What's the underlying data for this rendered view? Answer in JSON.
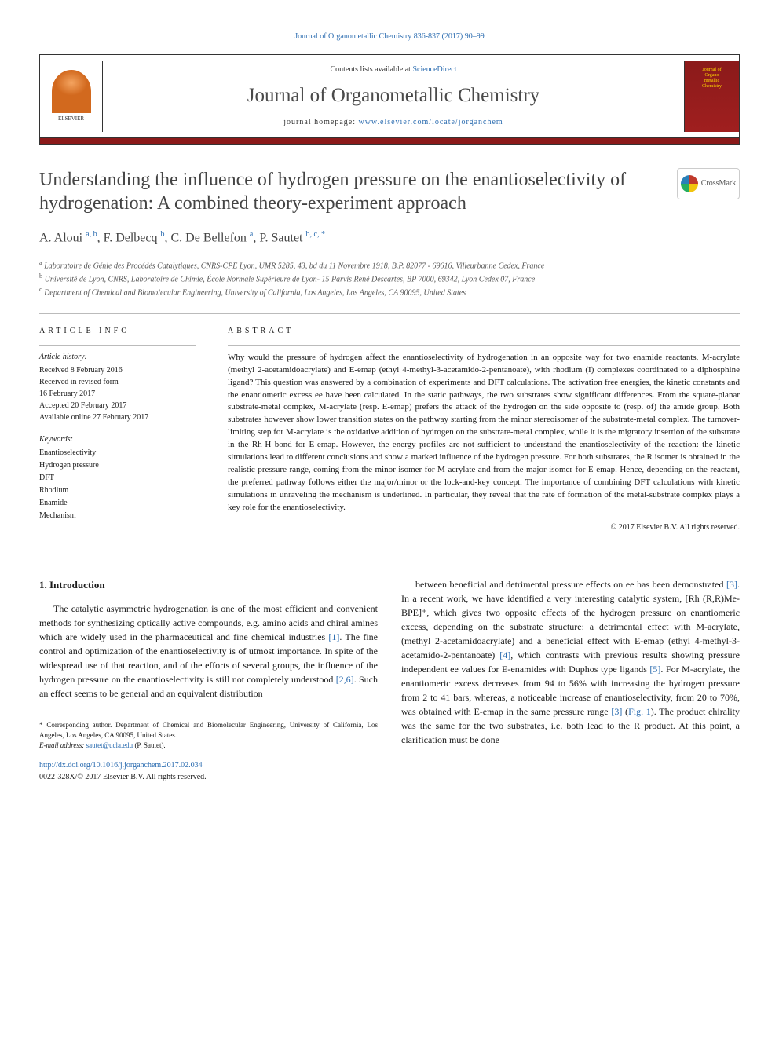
{
  "top_citation": "Journal of Organometallic Chemistry 836-837 (2017) 90–99",
  "header": {
    "contents_prefix": "Contents lists available at ",
    "contents_link": "ScienceDirect",
    "journal_name": "Journal of Organometallic Chemistry",
    "homepage_prefix": "journal homepage: ",
    "homepage_url": "www.elsevier.com/locate/jorganchem",
    "elsevier_label": "ELSEVIER",
    "cover_line1": "Journal of",
    "cover_line2": "Organo",
    "cover_line3": "metallic",
    "cover_line4": "Chemistry"
  },
  "title": "Understanding the influence of hydrogen pressure on the enantioselectivity of hydrogenation: A combined theory-experiment approach",
  "crossmark_label": "CrossMark",
  "authors_html": "A. Aloui <sup>a, b</sup>, F. Delbecq <sup>b</sup>, C. De Bellefon <sup>a</sup>, P. Sautet <sup>b, c, *</sup>",
  "affiliations": {
    "a": "Laboratoire de Génie des Procédés Catalytiques, CNRS-CPE Lyon, UMR 5285, 43, bd du 11 Novembre 1918, B.P. 82077 - 69616, Villeurbanne Cedex, France",
    "b": "Université de Lyon, CNRS, Laboratoire de Chimie, École Normale Supérieure de Lyon- 15 Parvis René Descartes, BP 7000, 69342, Lyon Cedex 07, France",
    "c": "Department of Chemical and Biomolecular Engineering, University of California, Los Angeles, Los Angeles, CA 90095, United States"
  },
  "article_info": {
    "heading": "ARTICLE INFO",
    "history_label": "Article history:",
    "history": [
      "Received 8 February 2016",
      "Received in revised form",
      "16 February 2017",
      "Accepted 20 February 2017",
      "Available online 27 February 2017"
    ],
    "keywords_label": "Keywords:",
    "keywords": [
      "Enantioselectivity",
      "Hydrogen pressure",
      "DFT",
      "Rhodium",
      "Enamide",
      "Mechanism"
    ]
  },
  "abstract": {
    "heading": "ABSTRACT",
    "text": "Why would the pressure of hydrogen affect the enantioselectivity of hydrogenation in an opposite way for two enamide reactants, M-acrylate (methyl 2-acetamidoacrylate) and E-emap (ethyl 4-methyl-3-acetamido-2-pentanoate), with rhodium (I) complexes coordinated to a diphosphine ligand? This question was answered by a combination of experiments and DFT calculations. The activation free energies, the kinetic constants and the enantiomeric excess ee have been calculated. In the static pathways, the two substrates show significant differences. From the square-planar substrate-metal complex, M-acrylate (resp. E-emap) prefers the attack of the hydrogen on the side opposite to (resp. of) the amide group. Both substrates however show lower transition states on the pathway starting from the minor stereoisomer of the substrate-metal complex. The turnover-limiting step for M-acrylate is the oxidative addition of hydrogen on the substrate-metal complex, while it is the migratory insertion of the substrate in the Rh-H bond for E-emap. However, the energy profiles are not sufficient to understand the enantioselectivity of the reaction: the kinetic simulations lead to different conclusions and show a marked influence of the hydrogen pressure. For both substrates, the R isomer is obtained in the realistic pressure range, coming from the minor isomer for M-acrylate and from the major isomer for E-emap. Hence, depending on the reactant, the preferred pathway follows either the major/minor or the lock-and-key concept. The importance of combining DFT calculations with kinetic simulations in unraveling the mechanism is underlined. In particular, they reveal that the rate of formation of the metal-substrate complex plays a key role for the enantioselectivity.",
    "copyright": "© 2017 Elsevier B.V. All rights reserved."
  },
  "body": {
    "section_heading": "1. Introduction",
    "col1_para": "The catalytic asymmetric hydrogenation is one of the most efficient and convenient methods for synthesizing optically active compounds, e.g. amino acids and chiral amines which are widely used in the pharmaceutical and fine chemical industries [1]. The fine control and optimization of the enantioselectivity is of utmost importance. In spite of the widespread use of that reaction, and of the efforts of several groups, the influence of the hydrogen pressure on the enantioselectivity is still not completely understood [2,6]. Such an effect seems to be general and an equivalent distribution",
    "col2_para": "between beneficial and detrimental pressure effects on ee has been demonstrated [3]. In a recent work, we have identified a very interesting catalytic system, [Rh (R,R)Me-BPE]⁺, which gives two opposite effects of the hydrogen pressure on enantiomeric excess, depending on the substrate structure: a detrimental effect with M-acrylate, (methyl 2-acetamidoacrylate) and a beneficial effect with E-emap (ethyl 4-methyl-3-acetamido-2-pentanoate) [4], which contrasts with previous results showing pressure independent ee values for E-enamides with Duphos type ligands [5]. For M-acrylate, the enantiomeric excess decreases from 94 to 56% with increasing the hydrogen pressure from 2 to 41 bars, whereas, a noticeable increase of enantioselectivity, from 20 to 70%, was obtained with E-emap in the same pressure range [3] (Fig. 1). The product chirality was the same for the two substrates, i.e. both lead to the R product. At this point, a clarification must be done"
  },
  "footnote": {
    "corr": "* Corresponding author. Department of Chemical and Biomolecular Engineering, University of California, Los Angeles, Los Angeles, CA 90095, United States.",
    "email_label": "E-mail address: ",
    "email": "sautet@ucla.edu",
    "email_suffix": " (P. Sautet)."
  },
  "doi": {
    "url": "http://dx.doi.org/10.1016/j.jorganchem.2017.02.034",
    "issn_line": "0022-328X/© 2017 Elsevier B.V. All rights reserved."
  },
  "colors": {
    "link": "#2b6cb0",
    "redbar": "#8b1a1a",
    "text": "#1a1a1a"
  }
}
